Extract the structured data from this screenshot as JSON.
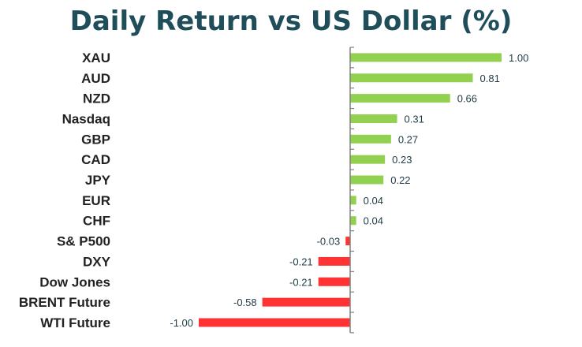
{
  "chart_data": {
    "type": "bar",
    "orientation": "horizontal",
    "title": "Daily Return vs US Dollar (%)",
    "categories": [
      "XAU",
      "AUD",
      "NZD",
      "Nasdaq",
      "GBP",
      "CAD",
      "JPY",
      "EUR",
      "CHF",
      "S& P500",
      "DXY",
      "Dow Jones",
      "BRENT Future",
      "WTI Future"
    ],
    "values": [
      1.0,
      0.81,
      0.66,
      0.31,
      0.27,
      0.23,
      0.22,
      0.04,
      0.04,
      -0.03,
      -0.21,
      -0.21,
      -0.58,
      -1.0
    ],
    "value_labels": [
      "1.00",
      "0.81",
      "0.66",
      "0.31",
      "0.27",
      "0.23",
      "0.22",
      "0.04",
      "0.04",
      "-0.03",
      "-0.21",
      "-0.21",
      "-0.58",
      "-1.00"
    ],
    "xlim": [
      -1.0,
      1.0
    ],
    "grid": false,
    "legend": "none",
    "colors": {
      "positive": "#92d050",
      "negative": "#ff3333",
      "axis": "#808080",
      "title": "#1f4e5a"
    }
  }
}
